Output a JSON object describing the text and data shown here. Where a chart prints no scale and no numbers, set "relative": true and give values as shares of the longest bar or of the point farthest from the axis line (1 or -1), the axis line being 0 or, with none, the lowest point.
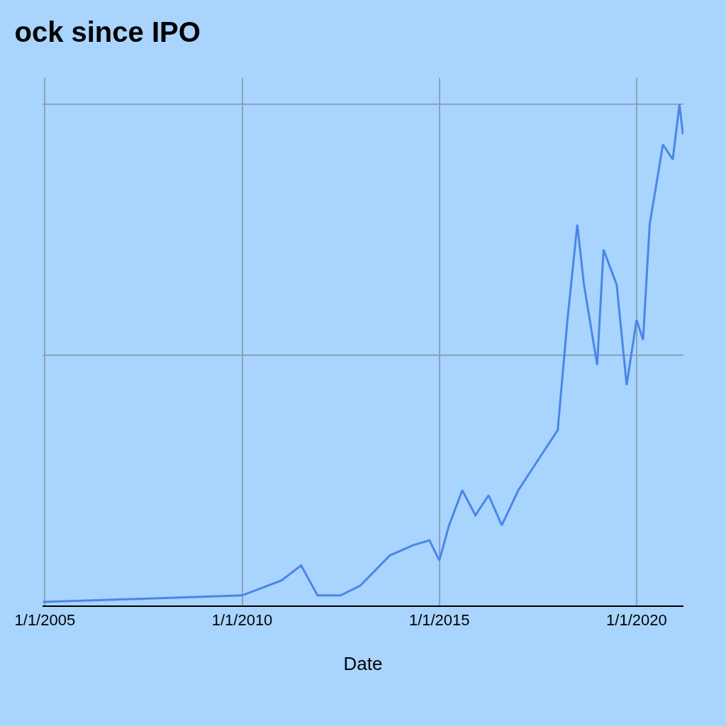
{
  "chart_data": {
    "type": "line",
    "title": "ock since IPO",
    "xlabel": "Date",
    "relative": true,
    "grid": true,
    "marker": "none",
    "line_style": "solid",
    "xlim": [
      "2004-12-10",
      "2021-03-10"
    ],
    "xticks": [
      {
        "value": "2005-01-01",
        "label": "1/1/2005"
      },
      {
        "value": "2010-01-01",
        "label": "1/1/2010"
      },
      {
        "value": "2015-01-01",
        "label": "1/1/2015"
      },
      {
        "value": "2020-01-01",
        "label": "1/1/2020"
      }
    ],
    "x": [
      "2004-12-15",
      "2010-01-01",
      "2011-01-01",
      "2011-07-01",
      "2011-12-01",
      "2012-07-01",
      "2013-01-01",
      "2013-10-01",
      "2014-05-01",
      "2014-10-01",
      "2015-01-01",
      "2015-04-01",
      "2015-08-01",
      "2015-12-01",
      "2016-04-01",
      "2016-08-01",
      "2017-01-01",
      "2017-08-01",
      "2018-01-01",
      "2018-04-01",
      "2018-07-01",
      "2018-09-01",
      "2019-01-01",
      "2019-03-01",
      "2019-07-01",
      "2019-10-01",
      "2020-01-01",
      "2020-03-01",
      "2020-05-01",
      "2020-09-01",
      "2020-12-01",
      "2021-02-01",
      "2021-03-05"
    ],
    "series": [
      {
        "color": "#4a86e8",
        "values": [
          0.007,
          0.02,
          0.05,
          0.08,
          0.02,
          0.02,
          0.04,
          0.1,
          0.12,
          0.13,
          0.09,
          0.16,
          0.23,
          0.18,
          0.22,
          0.16,
          0.23,
          0.3,
          0.35,
          0.57,
          0.76,
          0.64,
          0.48,
          0.71,
          0.64,
          0.44,
          0.57,
          0.53,
          0.76,
          0.92,
          0.89,
          1.0,
          0.94
        ]
      }
    ]
  }
}
